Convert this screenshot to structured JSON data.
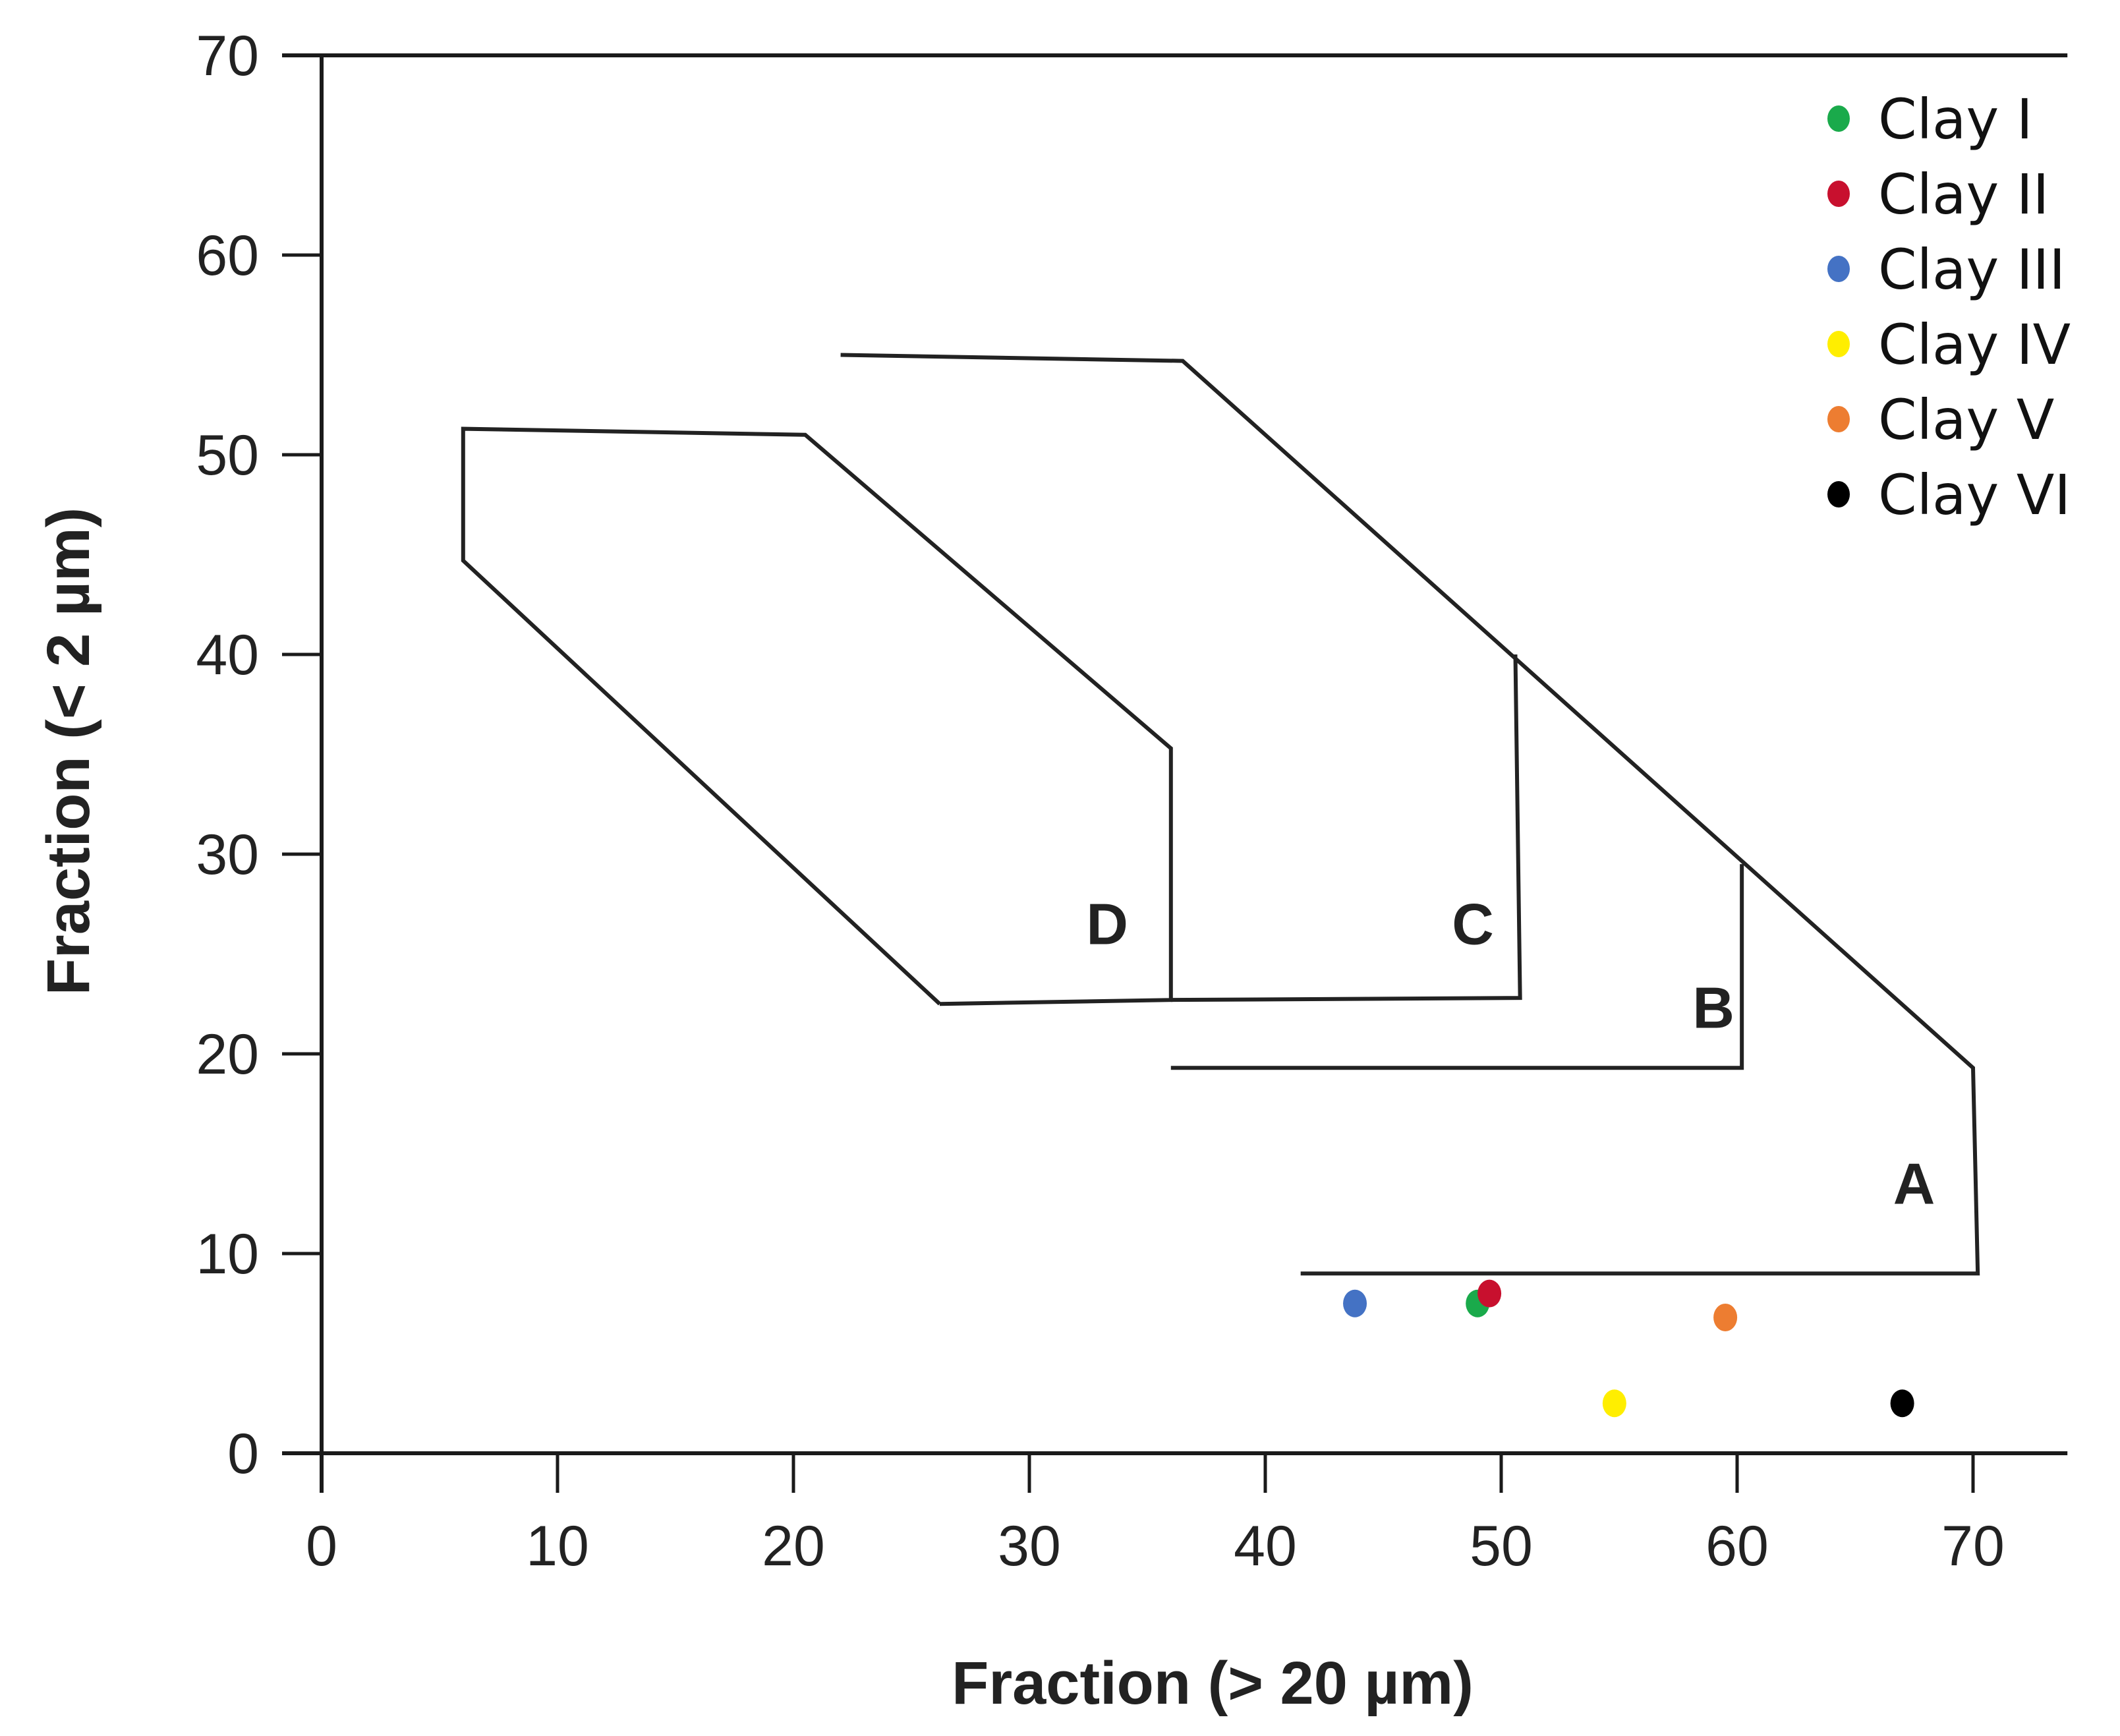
{
  "chart_data": {
    "type": "scatter",
    "title": "",
    "xlabel": "Fraction (> 20 µm)",
    "ylabel": "Fraction (< 2 µm)",
    "xlim": [
      0,
      74
    ],
    "ylim": [
      0,
      70
    ],
    "xticks": [
      0,
      10,
      20,
      30,
      40,
      50,
      60,
      70
    ],
    "yticks": [
      0,
      10,
      20,
      30,
      40,
      50,
      60,
      70
    ],
    "grid": false,
    "legend_position": "top-right",
    "series": [
      {
        "name": "Clay I",
        "color": "#1aaa4b",
        "x": [
          49
        ],
        "y": [
          7.5
        ]
      },
      {
        "name": "Clay II",
        "color": "#c8102e",
        "x": [
          49.5
        ],
        "y": [
          8
        ]
      },
      {
        "name": "Clay III",
        "color": "#4472c4",
        "x": [
          43.8
        ],
        "y": [
          7.5
        ]
      },
      {
        "name": "Clay IV",
        "color": "#ffee00",
        "x": [
          54.8
        ],
        "y": [
          2.5
        ]
      },
      {
        "name": "Clay V",
        "color": "#ed7d31",
        "x": [
          59.5
        ],
        "y": [
          6.8
        ]
      },
      {
        "name": "Clay VI",
        "color": "#000000",
        "x": [
          67
        ],
        "y": [
          2.5
        ]
      }
    ],
    "regions": [
      {
        "name": "A",
        "polyline": [
          [
            41.5,
            9
          ],
          [
            70.2,
            9
          ],
          [
            70,
            19.3
          ],
          [
            36.5,
            54.7
          ],
          [
            22,
            55
          ]
        ],
        "label_at": [
          67.5,
          12.5
        ]
      },
      {
        "name": "B",
        "polyline": [
          [
            36,
            19.3
          ],
          [
            60.2,
            19.3
          ],
          [
            60.2,
            29.5
          ]
        ],
        "label_at": [
          59,
          21.3
        ]
      },
      {
        "name": "C",
        "polyline": [
          [
            36,
            22.7
          ],
          [
            50.8,
            22.8
          ],
          [
            50.6,
            40
          ]
        ],
        "label_at": [
          48.8,
          25.5
        ]
      },
      {
        "name": "D",
        "polyline": [
          [
            26.2,
            22.5
          ],
          [
            36,
            22.7
          ],
          [
            36,
            35.3
          ],
          [
            20.5,
            51
          ],
          [
            6,
            51.3
          ],
          [
            6,
            44.7
          ],
          [
            26.2,
            22.5
          ]
        ],
        "label_at": [
          33.3,
          25.5
        ]
      }
    ]
  }
}
